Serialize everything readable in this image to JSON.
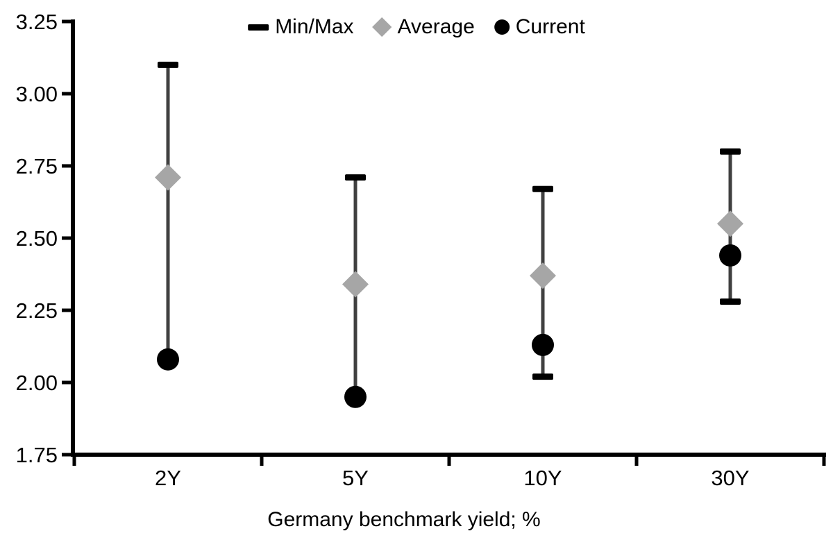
{
  "chart_data": {
    "type": "scatter",
    "title": "",
    "xlabel": "Germany benchmark yield; %",
    "ylabel": "",
    "categories": [
      "2Y",
      "5Y",
      "10Y",
      "30Y"
    ],
    "y_ticks": [
      "3.25",
      "3.00",
      "2.75",
      "2.50",
      "2.25",
      "2.00",
      "1.75"
    ],
    "ylim": [
      1.75,
      3.25
    ],
    "grid": false,
    "legend_position": "top-center",
    "colors": {
      "black": "#000000",
      "range_line": "#404040",
      "average_gray": "#a6a6a6"
    },
    "series": [
      {
        "name": "Min/Max",
        "marker": "dash",
        "color": "#000000",
        "max": [
          3.1,
          2.71,
          2.67,
          2.8
        ],
        "min": [
          2.08,
          1.95,
          2.02,
          2.28
        ],
        "min_cap_shown": [
          false,
          false,
          true,
          true
        ]
      },
      {
        "name": "Average",
        "marker": "diamond",
        "color": "#a6a6a6",
        "values": [
          2.71,
          2.34,
          2.37,
          2.55
        ]
      },
      {
        "name": "Current",
        "marker": "circle",
        "color": "#000000",
        "values": [
          2.08,
          1.95,
          2.13,
          2.44
        ]
      }
    ]
  }
}
